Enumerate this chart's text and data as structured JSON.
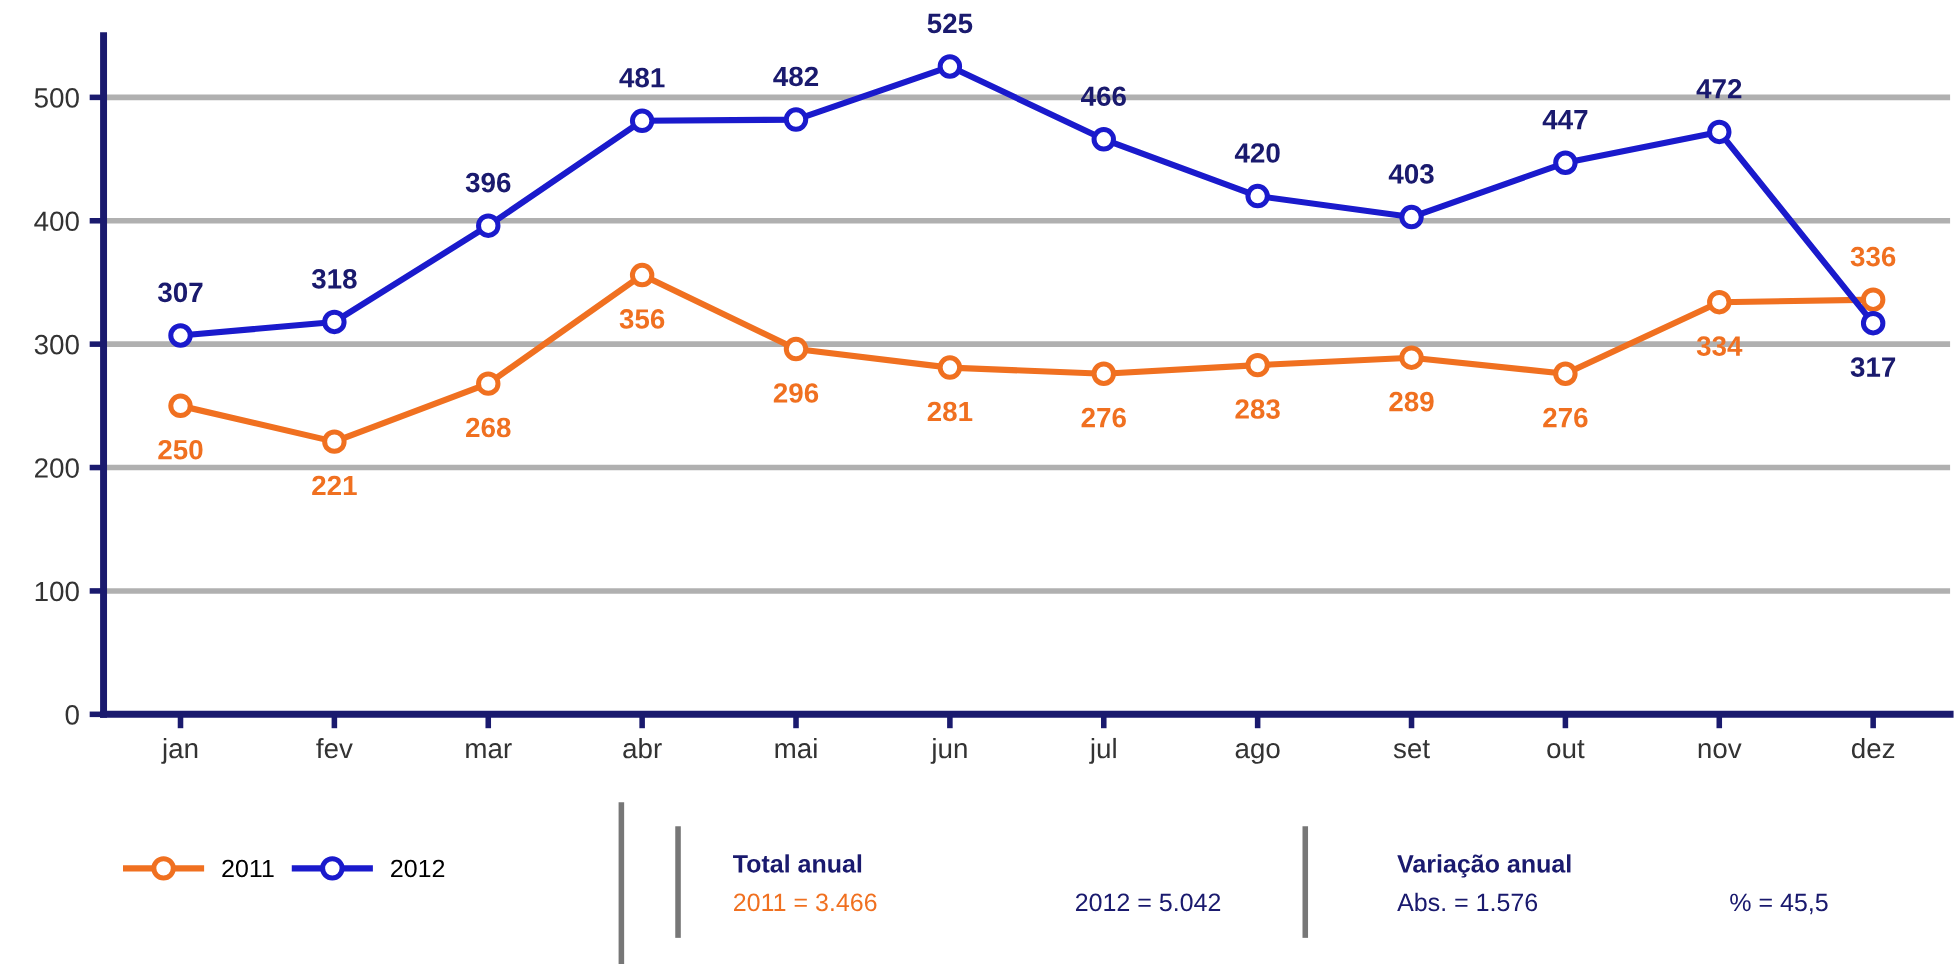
{
  "chart_data": {
    "type": "line",
    "categories": [
      "jan",
      "fev",
      "mar",
      "abr",
      "mai",
      "jun",
      "jul",
      "ago",
      "set",
      "out",
      "nov",
      "dez"
    ],
    "series": [
      {
        "name": "2011",
        "color": "#f07020",
        "values": [
          250,
          221,
          268,
          356,
          296,
          281,
          276,
          283,
          289,
          276,
          334,
          336
        ]
      },
      {
        "name": "2012",
        "color": "#1a1acc",
        "values": [
          307,
          318,
          396,
          481,
          482,
          525,
          466,
          420,
          403,
          447,
          472,
          317
        ]
      }
    ],
    "ylim": [
      0,
      550
    ],
    "yticks": [
      0,
      100,
      200,
      300,
      400,
      500
    ],
    "grid": "y",
    "legend": "bottom left",
    "marker": "circle",
    "line_style": "solid",
    "data_labels": true,
    "annotations": [
      "Total anual",
      "2011 = 3.466",
      "2012 = 5.042",
      "Variação anual",
      "Abs. = 1.576",
      "% = 45,5"
    ]
  }
}
